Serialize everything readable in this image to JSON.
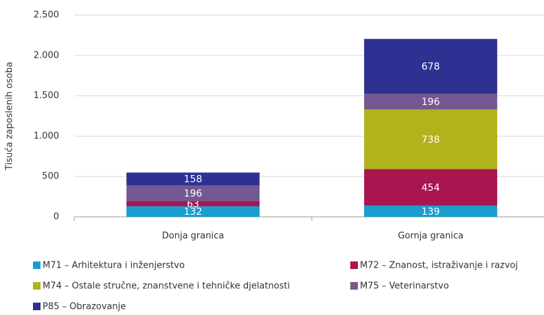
{
  "chart_data": {
    "type": "stacked_bar",
    "ylabel": "Tisuća zaposlenih osoba",
    "categories": [
      "Donja granica",
      "Gornja granica"
    ],
    "series": [
      {
        "name": "M71 – Arhitektura i inženjerstvo",
        "color": "#1a9dd1",
        "values": [
          132,
          139
        ]
      },
      {
        "name": "M72 – Znanost, istraživanje i razvoj",
        "color": "#a8154f",
        "values": [
          63,
          454
        ]
      },
      {
        "name": "M74 – Ostale stručne, znanstvene i tehničke djelatnosti",
        "color": "#b2b21c",
        "values": [
          null,
          738
        ]
      },
      {
        "name": "M75 – Veterinarstvo",
        "color": "#735891",
        "values": [
          196,
          196
        ]
      },
      {
        "name": "P85 – Obrazovanje",
        "color": "#2e3192",
        "values": [
          158,
          678
        ]
      }
    ],
    "ylim": [
      0,
      2500
    ],
    "yticks": [
      0,
      500,
      {
        "value": 1000,
        "label": "1.000"
      },
      {
        "value": 1500,
        "label": "1.500"
      },
      {
        "value": 2000,
        "label": "2.000"
      },
      {
        "value": 2500,
        "label": "2.500"
      }
    ],
    "grid": true,
    "legend": "bottom"
  }
}
